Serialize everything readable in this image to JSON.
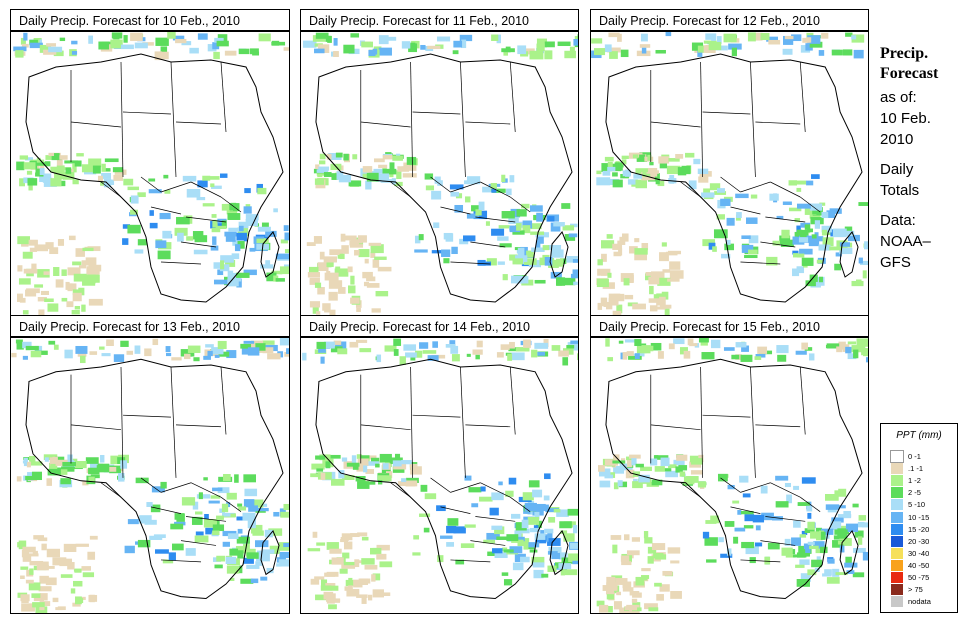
{
  "panels": [
    {
      "title": "Daily Precip. Forecast for  10 Feb., 2010"
    },
    {
      "title": "Daily Precip. Forecast for  11 Feb., 2010"
    },
    {
      "title": "Daily Precip. Forecast for  12 Feb., 2010"
    },
    {
      "title": "Daily Precip. Forecast for  13 Feb., 2010"
    },
    {
      "title": "Daily Precip. Forecast for  14 Feb., 2010"
    },
    {
      "title": "Daily Precip. Forecast for  15 Feb., 2010"
    }
  ],
  "side": {
    "heading1": "Precip.",
    "heading2": "Forecast",
    "as_of": "as of:",
    "date1": "10 Feb.",
    "date2": "2010",
    "totals1": "Daily",
    "totals2": "Totals",
    "data1": "Data:",
    "data2": "NOAA–",
    "data3": "GFS"
  },
  "legend": {
    "title": "PPT (mm)",
    "items": [
      {
        "label": "0 -1",
        "color": "#ffffff"
      },
      {
        "label": ".1 -1",
        "color": "#e9d8b8"
      },
      {
        "label": "1 -2",
        "color": "#aaf28a"
      },
      {
        "label": "2 -5",
        "color": "#5cdc5c"
      },
      {
        "label": "5 -10",
        "color": "#a9def7"
      },
      {
        "label": "10 -15",
        "color": "#66b4f4"
      },
      {
        "label": "15 -20",
        "color": "#2e8cf0"
      },
      {
        "label": "20 -30",
        "color": "#1a5ad8"
      },
      {
        "label": "30 -40",
        "color": "#f6e05a"
      },
      {
        "label": "40 -50",
        "color": "#f9a21c"
      },
      {
        "label": "50 -75",
        "color": "#e82a10"
      },
      {
        "label": "> 75",
        "color": "#8a2a1c"
      },
      {
        "label": "nodata",
        "color": "#c8c8c8"
      }
    ]
  }
}
